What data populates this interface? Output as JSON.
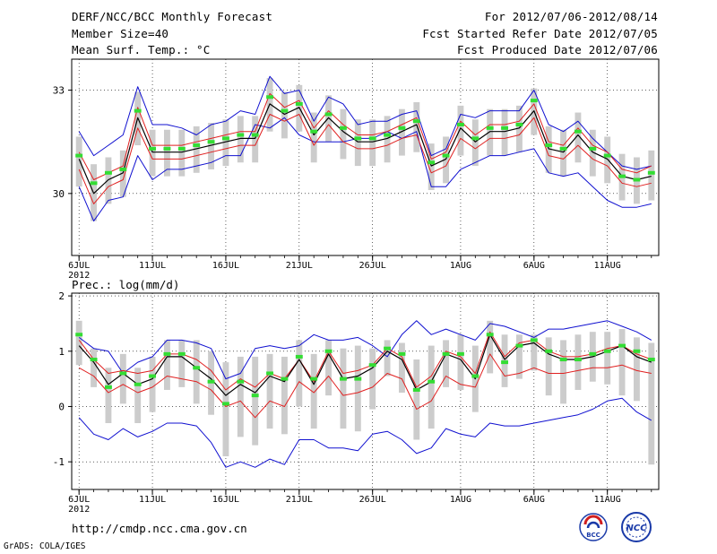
{
  "header": {
    "title": "DERF/NCC/BCC Monthly Forecast",
    "member_size": "Member Size=40",
    "variable": "Mean Surf. Temp.: °C",
    "period": "For 2012/07/06-2012/08/14",
    "start_date": "Fcst Started Refer Date 2012/07/05",
    "produced_date": "Fcst Produced Date 2012/07/06"
  },
  "footer": {
    "url": "http://cmdp.ncc.cma.gov.cn",
    "credit": "GrADS: COLA/IGES",
    "logo_bcc_text": "BCC",
    "logo_ncc_text": "NCC"
  },
  "colors": {
    "envelope": "#1010d0",
    "inner_band": "#e02020",
    "mean": "#000000",
    "median_marker": "#33dd33",
    "box": "#cccccc"
  },
  "x_ticks": [
    {
      "day": 0,
      "label": "6JUL",
      "sub": "2012"
    },
    {
      "day": 5,
      "label": "11JUL"
    },
    {
      "day": 10,
      "label": "16JUL"
    },
    {
      "day": 15,
      "label": "21JUL"
    },
    {
      "day": 20,
      "label": "26JUL"
    },
    {
      "day": 26,
      "label": "1AUG"
    },
    {
      "day": 31,
      "label": "6AUG"
    },
    {
      "day": 36,
      "label": "11AUG"
    }
  ],
  "chart_data": [
    {
      "type": "line",
      "title": "Mean Surf. Temp.: °C",
      "xlabel": "",
      "ylabel": "°C",
      "xlim": [
        -0.5,
        39.5
      ],
      "ylim": [
        28.2,
        33.9
      ],
      "yticks": [
        30,
        33
      ],
      "ytick_labels": [
        "30",
        "33"
      ],
      "x_start": "2012-07-06",
      "days": 40,
      "series": [
        {
          "name": "max",
          "values": [
            31.8,
            31.1,
            31.4,
            31.7,
            33.1,
            32.0,
            32.0,
            31.9,
            31.7,
            32.0,
            32.1,
            32.4,
            32.3,
            33.4,
            32.9,
            33.0,
            32.1,
            32.8,
            32.6,
            32.0,
            32.1,
            32.1,
            32.3,
            32.4,
            31.1,
            31.3,
            32.3,
            32.2,
            32.4,
            32.4,
            32.4,
            33.0,
            32.0,
            31.8,
            32.1,
            31.6,
            31.2,
            30.8,
            30.7,
            30.8
          ]
        },
        {
          "name": "upper",
          "values": [
            31.2,
            30.4,
            30.6,
            30.8,
            32.5,
            31.4,
            31.4,
            31.4,
            31.5,
            31.6,
            31.7,
            31.8,
            31.8,
            32.9,
            32.5,
            32.7,
            31.9,
            32.4,
            32.0,
            31.7,
            31.7,
            31.8,
            32.0,
            32.2,
            31.0,
            31.2,
            32.1,
            31.7,
            32.0,
            32.0,
            32.1,
            32.6,
            31.5,
            31.4,
            31.9,
            31.4,
            31.2,
            30.7,
            30.6,
            30.8
          ]
        },
        {
          "name": "mean",
          "values": [
            31.0,
            30.0,
            30.4,
            30.6,
            32.2,
            31.2,
            31.2,
            31.2,
            31.3,
            31.4,
            31.5,
            31.6,
            31.6,
            32.6,
            32.3,
            32.5,
            31.7,
            32.2,
            31.8,
            31.5,
            31.5,
            31.6,
            31.8,
            32.0,
            30.8,
            31.0,
            31.9,
            31.5,
            31.8,
            31.8,
            31.9,
            32.4,
            31.3,
            31.2,
            31.7,
            31.2,
            31.0,
            30.5,
            30.4,
            30.5
          ]
        },
        {
          "name": "lower",
          "values": [
            30.7,
            29.7,
            30.2,
            30.4,
            31.9,
            31.0,
            31.0,
            31.0,
            31.1,
            31.2,
            31.3,
            31.4,
            31.4,
            32.3,
            32.1,
            32.3,
            31.4,
            32.0,
            31.5,
            31.3,
            31.3,
            31.4,
            31.6,
            31.7,
            30.6,
            30.8,
            31.6,
            31.3,
            31.6,
            31.6,
            31.7,
            32.2,
            31.1,
            31.0,
            31.4,
            31.0,
            30.8,
            30.3,
            30.2,
            30.3
          ]
        },
        {
          "name": "min",
          "values": [
            30.2,
            29.2,
            29.8,
            29.9,
            31.1,
            30.4,
            30.7,
            30.7,
            30.8,
            30.9,
            31.1,
            31.1,
            32.0,
            31.9,
            32.2,
            31.7,
            31.5,
            31.5,
            31.5,
            31.6,
            31.6,
            31.8,
            31.6,
            31.8,
            30.2,
            30.2,
            30.7,
            30.9,
            31.1,
            31.1,
            31.2,
            31.3,
            30.6,
            30.5,
            30.6,
            30.2,
            29.8,
            29.6,
            29.6,
            29.7
          ]
        },
        {
          "name": "median",
          "values": [
            31.1,
            30.3,
            30.6,
            30.7,
            32.4,
            31.3,
            31.3,
            31.3,
            31.4,
            31.5,
            31.6,
            31.7,
            31.7,
            32.8,
            32.4,
            32.6,
            31.8,
            32.3,
            31.9,
            31.6,
            31.6,
            31.7,
            31.9,
            32.1,
            30.9,
            31.1,
            32.0,
            31.6,
            31.9,
            31.9,
            32.0,
            32.7,
            31.4,
            31.3,
            31.8,
            31.3,
            31.1,
            30.5,
            30.4,
            30.6
          ]
        }
      ]
    },
    {
      "type": "line",
      "title": "Prec.: log(mm/d)",
      "xlabel": "",
      "ylabel": "log(mm/d)",
      "xlim": [
        -0.5,
        39.5
      ],
      "ylim": [
        -1.5,
        2.05
      ],
      "yticks": [
        -1,
        0,
        1,
        2
      ],
      "ytick_labels": [
        "-1",
        "0",
        "1",
        "2"
      ],
      "x_start": "2012-07-06",
      "days": 40,
      "series": [
        {
          "name": "max",
          "values": [
            1.25,
            1.05,
            1.0,
            0.6,
            0.8,
            0.9,
            1.2,
            1.2,
            1.15,
            1.05,
            0.5,
            0.6,
            1.05,
            1.1,
            1.05,
            1.1,
            1.3,
            1.2,
            1.2,
            1.25,
            1.1,
            0.9,
            1.3,
            1.55,
            1.3,
            1.4,
            1.3,
            1.2,
            1.5,
            1.45,
            1.35,
            1.25,
            1.4,
            1.4,
            1.45,
            1.5,
            1.55,
            1.45,
            1.35,
            1.2
          ]
        },
        {
          "name": "upper",
          "values": [
            1.2,
            0.85,
            0.6,
            0.65,
            0.6,
            0.65,
            0.95,
            0.95,
            0.85,
            0.65,
            0.3,
            0.5,
            0.35,
            0.6,
            0.5,
            0.85,
            0.45,
            1.0,
            0.6,
            0.65,
            0.75,
            1.05,
            0.9,
            0.35,
            0.55,
            1.0,
            0.9,
            0.6,
            1.35,
            0.9,
            1.15,
            1.2,
            1.0,
            0.9,
            0.9,
            0.95,
            1.05,
            1.1,
            0.95,
            0.85
          ]
        },
        {
          "name": "mean",
          "values": [
            1.1,
            0.8,
            0.4,
            0.6,
            0.4,
            0.5,
            0.9,
            0.9,
            0.7,
            0.5,
            0.2,
            0.4,
            0.25,
            0.55,
            0.45,
            0.85,
            0.4,
            0.95,
            0.5,
            0.55,
            0.7,
            1.0,
            0.85,
            0.3,
            0.45,
            0.95,
            0.85,
            0.5,
            1.3,
            0.85,
            1.1,
            1.15,
            0.95,
            0.85,
            0.85,
            0.9,
            1.0,
            1.1,
            0.9,
            0.8
          ]
        },
        {
          "name": "lower",
          "values": [
            0.7,
            0.55,
            0.25,
            0.4,
            0.25,
            0.35,
            0.55,
            0.5,
            0.45,
            0.3,
            0.0,
            0.1,
            -0.2,
            0.1,
            0.0,
            0.45,
            0.25,
            0.55,
            0.2,
            0.25,
            0.35,
            0.6,
            0.5,
            -0.05,
            0.1,
            0.55,
            0.4,
            0.35,
            0.95,
            0.55,
            0.6,
            0.7,
            0.6,
            0.6,
            0.65,
            0.7,
            0.7,
            0.75,
            0.65,
            0.6
          ]
        },
        {
          "name": "min",
          "values": [
            -0.2,
            -0.5,
            -0.6,
            -0.4,
            -0.55,
            -0.45,
            -0.3,
            -0.3,
            -0.35,
            -0.65,
            -1.1,
            -1.0,
            -1.1,
            -0.95,
            -1.05,
            -0.6,
            -0.6,
            -0.75,
            -0.75,
            -0.8,
            -0.5,
            -0.45,
            -0.6,
            -0.85,
            -0.75,
            -0.4,
            -0.5,
            -0.55,
            -0.3,
            -0.35,
            -0.35,
            -0.3,
            -0.25,
            -0.2,
            -0.15,
            -0.05,
            0.1,
            0.15,
            -0.1,
            -0.25
          ]
        },
        {
          "name": "median",
          "values": [
            1.3,
            0.85,
            0.35,
            0.6,
            0.4,
            0.55,
            0.95,
            0.95,
            0.7,
            0.45,
            0.05,
            0.45,
            0.2,
            0.6,
            0.5,
            0.9,
            0.5,
            1.0,
            0.5,
            0.5,
            0.75,
            1.05,
            0.95,
            0.3,
            0.45,
            0.95,
            0.95,
            0.55,
            1.3,
            0.8,
            1.1,
            1.2,
            1.0,
            0.85,
            0.85,
            0.95,
            1.0,
            1.1,
            1.0,
            0.85
          ]
        },
        {
          "name": "box_top",
          "values": [
            1.55,
            1.05,
            0.7,
            0.95,
            0.7,
            0.9,
            1.2,
            1.2,
            1.2,
            1.0,
            0.8,
            0.9,
            0.9,
            0.95,
            0.9,
            1.2,
            0.95,
            1.2,
            1.05,
            1.1,
            1.05,
            1.2,
            1.15,
            0.85,
            1.1,
            1.2,
            1.3,
            1.1,
            1.55,
            1.3,
            1.3,
            1.3,
            1.25,
            1.2,
            1.3,
            1.35,
            1.35,
            1.4,
            1.25,
            1.15
          ]
        },
        {
          "name": "box_bottom",
          "values": [
            0.75,
            0.35,
            -0.3,
            0.05,
            -0.3,
            -0.1,
            0.3,
            0.35,
            0.05,
            -0.15,
            -0.9,
            -0.55,
            -0.7,
            -0.4,
            -0.5,
            0.0,
            -0.4,
            0.2,
            -0.4,
            -0.45,
            -0.05,
            0.55,
            0.25,
            -0.6,
            -0.4,
            0.35,
            0.3,
            -0.1,
            0.6,
            0.35,
            0.5,
            0.65,
            0.2,
            0.05,
            0.3,
            0.45,
            0.4,
            0.2,
            0.1,
            -1.05
          ]
        }
      ]
    }
  ]
}
